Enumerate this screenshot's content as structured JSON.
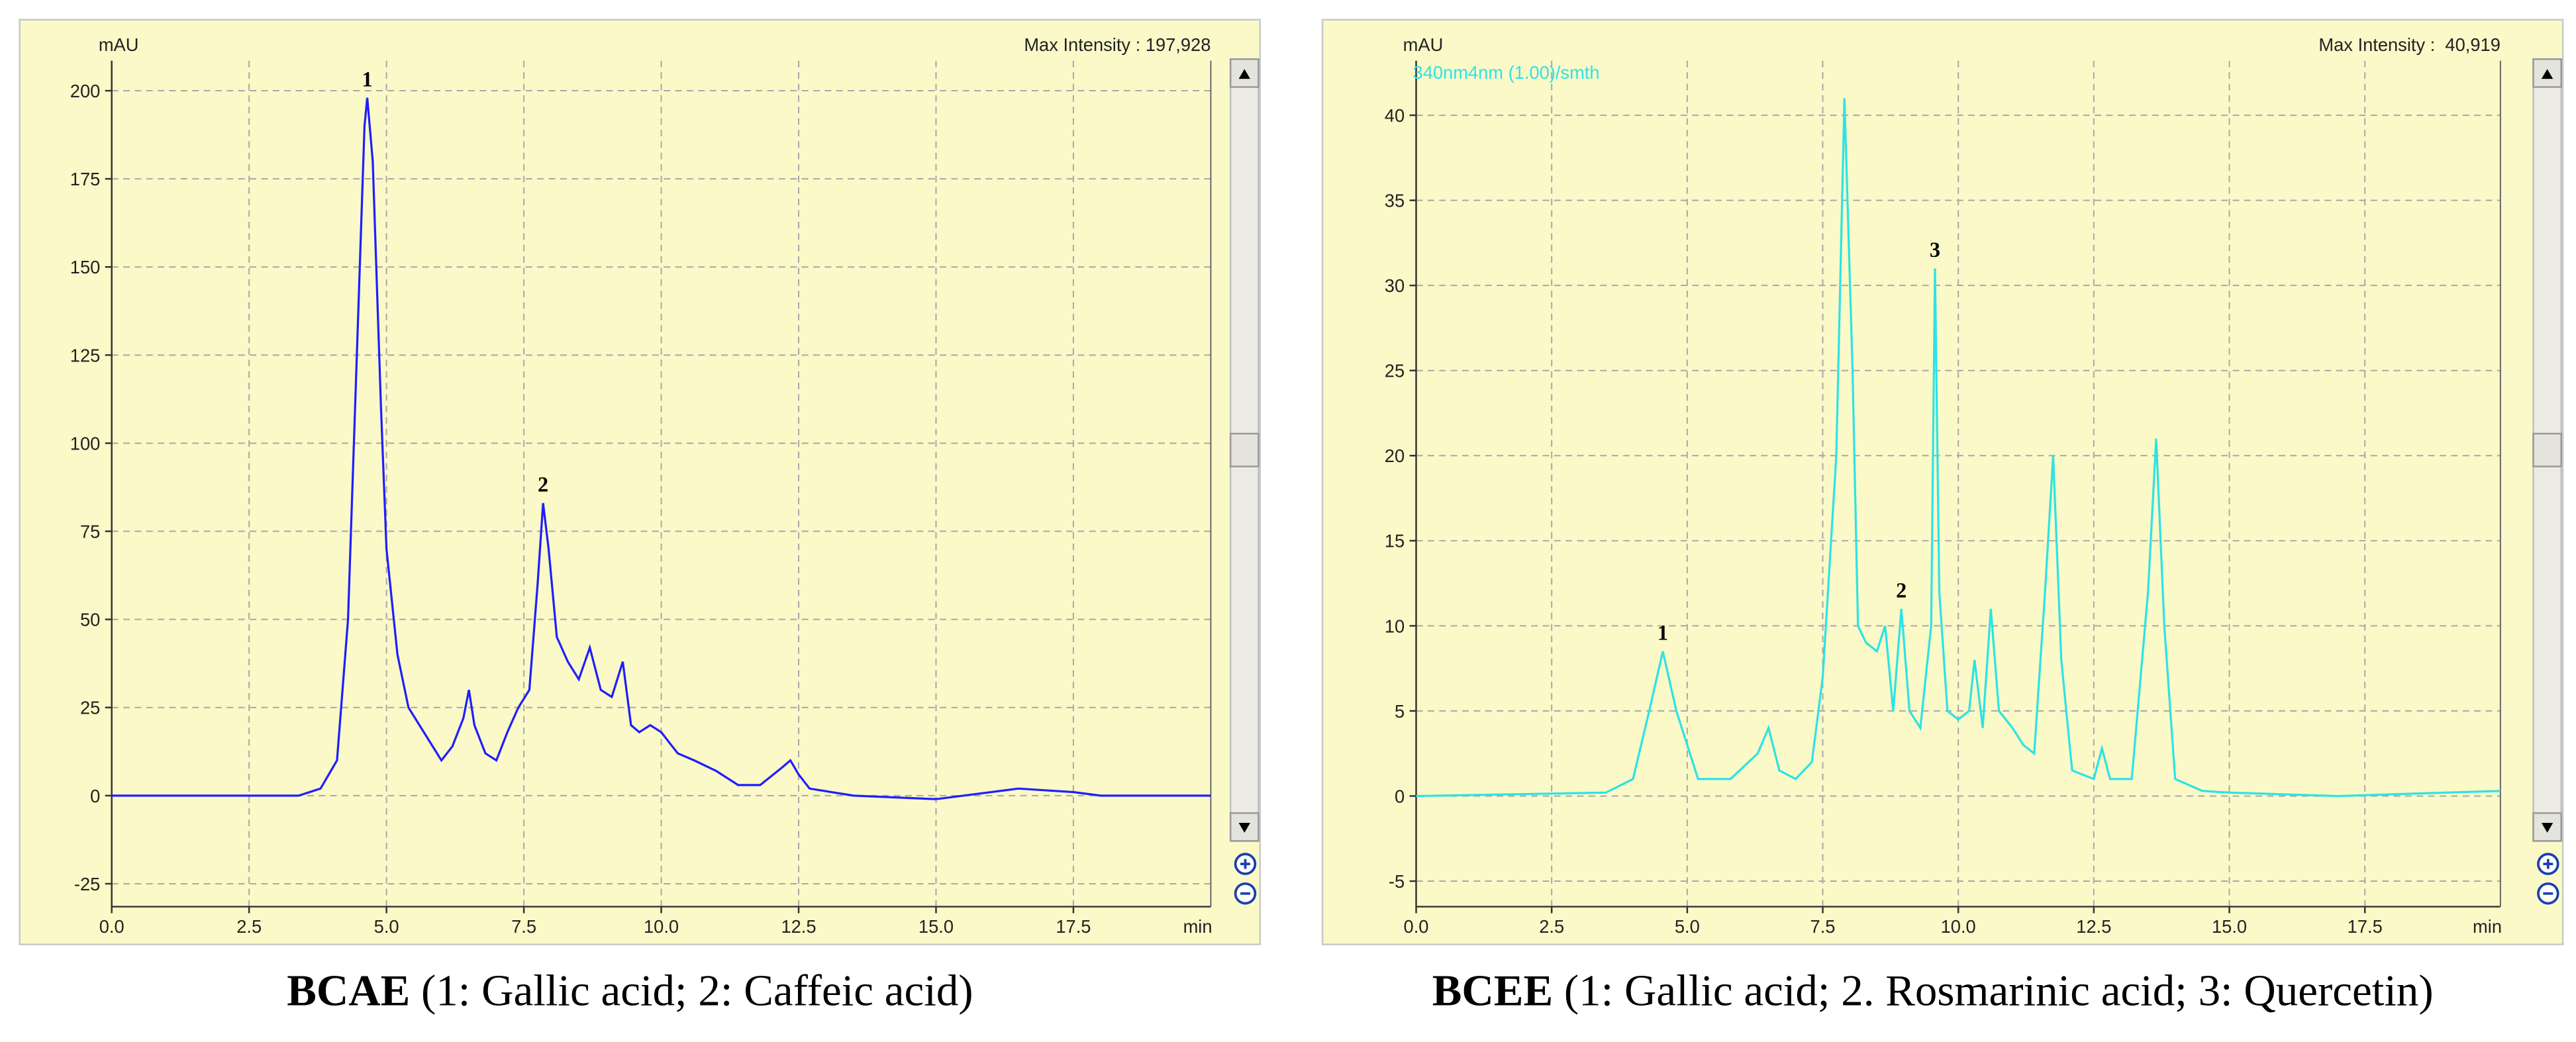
{
  "chart_data": [
    {
      "type": "line",
      "y_unit_label": "mAU",
      "max_intensity": "Max Intensity : 197,928",
      "xlabel": "min",
      "color": "#1f1fff",
      "background": "#fbf9c8",
      "grid": true,
      "xlim": [
        0,
        20
      ],
      "ylim": [
        -31.5,
        208.5
      ],
      "xticks": [
        {
          "value": 0,
          "label": "0.0"
        },
        2.5,
        {
          "value": 5,
          "label": "5.0"
        },
        7.5,
        {
          "value": 10,
          "label": "10.0"
        },
        12.5,
        {
          "value": 15,
          "label": "15.0"
        },
        17.5
      ],
      "yticks": [
        -25,
        0,
        25,
        50,
        75,
        100,
        125,
        150,
        175,
        200
      ],
      "x": [
        0,
        3.4,
        3.8,
        4.1,
        4.3,
        4.45,
        4.6,
        4.65,
        4.75,
        4.9,
        5.0,
        5.2,
        5.4,
        5.6,
        5.8,
        6.0,
        6.2,
        6.4,
        6.5,
        6.6,
        6.8,
        7.0,
        7.2,
        7.4,
        7.6,
        7.75,
        7.85,
        7.95,
        8.1,
        8.3,
        8.5,
        8.7,
        8.9,
        9.1,
        9.3,
        9.45,
        9.6,
        9.8,
        10.0,
        10.3,
        10.6,
        11.0,
        11.4,
        11.8,
        12.2,
        12.35,
        12.5,
        12.7,
        13.5,
        15.0,
        16.5,
        17.5,
        18.0,
        20.0
      ],
      "values": [
        0,
        0,
        2,
        10,
        50,
        120,
        190,
        198,
        180,
        110,
        70,
        40,
        25,
        20,
        15,
        10,
        14,
        22,
        30,
        20,
        12,
        10,
        18,
        25,
        30,
        60,
        83,
        70,
        45,
        38,
        33,
        42,
        30,
        28,
        38,
        20,
        18,
        20,
        18,
        12,
        10,
        7,
        3,
        3,
        8,
        10,
        6,
        2,
        0,
        -1,
        2,
        1,
        0,
        0
      ],
      "annotations": [
        {
          "text": "1",
          "x": 4.65,
          "y": 198
        },
        {
          "text": "2",
          "x": 7.85,
          "y": 83
        }
      ],
      "caption": {
        "bold": "BCAE",
        "text": " (1: Gallic acid; 2: Caffeic acid)"
      }
    },
    {
      "type": "line",
      "y_unit_label": "mAU",
      "max_intensity": "Max Intensity :  40,919",
      "channel_label": "340nm4nm (1.00)/smth",
      "xlabel": "min",
      "color": "#2ee3e3",
      "background": "#fbf9c8",
      "grid": true,
      "xlim": [
        0,
        20
      ],
      "ylim": [
        -6.5,
        43.2
      ],
      "xticks": [
        {
          "value": 0,
          "label": "0.0"
        },
        2.5,
        {
          "value": 5,
          "label": "5.0"
        },
        7.5,
        {
          "value": 10,
          "label": "10.0"
        },
        12.5,
        {
          "value": 15,
          "label": "15.0"
        },
        17.5
      ],
      "yticks": [
        -5,
        0,
        5,
        10,
        15,
        20,
        25,
        30,
        35,
        40
      ],
      "x": [
        0,
        3.5,
        4.0,
        4.3,
        4.55,
        4.8,
        5.2,
        5.8,
        6.3,
        6.5,
        6.7,
        7.0,
        7.3,
        7.5,
        7.75,
        7.9,
        8.05,
        8.15,
        8.3,
        8.5,
        8.65,
        8.8,
        8.95,
        9.1,
        9.3,
        9.5,
        9.57,
        9.65,
        9.8,
        10.0,
        10.2,
        10.3,
        10.45,
        10.6,
        10.75,
        11.0,
        11.2,
        11.4,
        11.6,
        11.75,
        11.9,
        12.1,
        12.5,
        12.65,
        12.8,
        13.2,
        13.5,
        13.65,
        13.8,
        14.0,
        14.5,
        15.0,
        17.0,
        20.0
      ],
      "values": [
        0,
        0.2,
        1,
        5,
        8.5,
        5,
        1,
        1,
        2.5,
        4,
        1.5,
        1,
        2,
        7,
        20,
        41,
        25,
        10,
        9,
        8.5,
        10,
        5,
        11,
        5,
        4,
        10,
        31,
        12,
        5,
        4.5,
        5,
        8,
        4,
        11,
        5,
        4,
        3,
        2.5,
        12,
        20,
        8,
        1.5,
        1,
        2.8,
        1,
        1,
        12,
        21,
        10,
        1,
        0.3,
        0.2,
        0,
        0.3
      ],
      "annotations": [
        {
          "text": "1",
          "x": 4.55,
          "y": 8.5
        },
        {
          "text": "2",
          "x": 8.95,
          "y": 11
        },
        {
          "text": "3",
          "x": 9.57,
          "y": 31
        }
      ],
      "caption": {
        "bold": "BCEE",
        "text": " (1: Gallic acid; 2. Rosmarinic acid; 3: Quercetin)"
      }
    }
  ]
}
